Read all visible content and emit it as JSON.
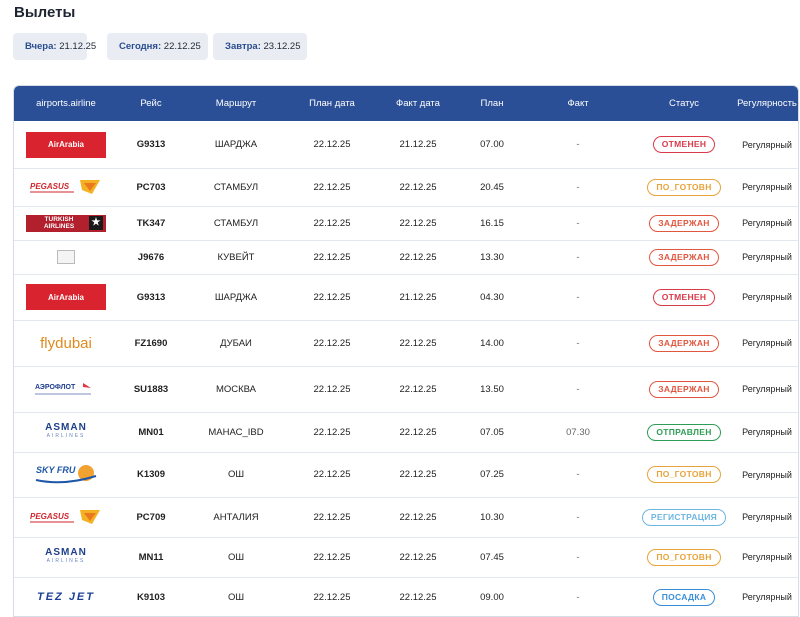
{
  "page": {
    "title": "Вылеты"
  },
  "day_tabs": [
    {
      "label": "Вчера:",
      "date": "21.12.25"
    },
    {
      "label": "Сегодня:",
      "date": "22.12.25"
    },
    {
      "label": "Завтра:",
      "date": "23.12.25"
    }
  ],
  "table": {
    "columns": [
      "airports.airline",
      "Рейс",
      "Маршрут",
      "План дата",
      "Факт дата",
      "План",
      "Факт",
      "Статус",
      "Регулярность"
    ],
    "rows": [
      {
        "logo": "airarabia",
        "logo_text": "AirArabia",
        "flight": "G9313",
        "route": "ШАРДЖА",
        "plan_date": "22.12.25",
        "fact_date": "21.12.25",
        "plan": "07.00",
        "fact": "-",
        "status": "ОТМЕНЕН",
        "status_color": "#d93a4a",
        "regularity": "Регулярный"
      },
      {
        "logo": "pegasus",
        "logo_text": "PEGASUS",
        "flight": "PC703",
        "route": "Стамбул",
        "plan_date": "22.12.25",
        "fact_date": "22.12.25",
        "plan": "20.45",
        "fact": "-",
        "status": "ПО_ГОТОВН",
        "status_color": "#e8a43c",
        "regularity": "Регулярный"
      },
      {
        "logo": "turkish",
        "logo_text": "TURKISH AIRLINES",
        "flight": "TK347",
        "route": "СТАМБУЛ",
        "plan_date": "22.12.25",
        "fact_date": "22.12.25",
        "plan": "16.15",
        "fact": "-",
        "status": "ЗАДЕРЖАН",
        "status_color": "#e0563f",
        "regularity": "Регулярный"
      },
      {
        "logo": "broken",
        "logo_text": "",
        "flight": "J9676",
        "route": "КУВЕЙТ",
        "plan_date": "22.12.25",
        "fact_date": "22.12.25",
        "plan": "13.30",
        "fact": "-",
        "status": "ЗАДЕРЖАН",
        "status_color": "#e0563f",
        "regularity": "Регулярный"
      },
      {
        "logo": "airarabia",
        "logo_text": "AirArabia",
        "flight": "G9313",
        "route": "ШАРДЖА",
        "plan_date": "22.12.25",
        "fact_date": "21.12.25",
        "plan": "04.30",
        "fact": "-",
        "status": "ОТМЕНЕН",
        "status_color": "#d93a4a",
        "regularity": "Регулярный"
      },
      {
        "logo": "flydubai",
        "logo_text": "flydubai",
        "flight": "FZ1690",
        "route": "ДУБАИ",
        "plan_date": "22.12.25",
        "fact_date": "22.12.25",
        "plan": "14.00",
        "fact": "-",
        "status": "ЗАДЕРЖАН",
        "status_color": "#e0563f",
        "regularity": "Регулярный"
      },
      {
        "logo": "aeroflot",
        "logo_text": "АЭРОФЛОТ",
        "flight": "SU1883",
        "route": "МОСКВА",
        "plan_date": "22.12.25",
        "fact_date": "22.12.25",
        "plan": "13.50",
        "fact": "-",
        "status": "ЗАДЕРЖАН",
        "status_color": "#e0563f",
        "regularity": "Регулярный"
      },
      {
        "logo": "asman",
        "logo_text": "ASMAN",
        "logo_sub": "AIRLINES",
        "flight": "MN01",
        "route": "МАНАС_IBD",
        "plan_date": "22.12.25",
        "fact_date": "22.12.25",
        "plan": "07.05",
        "fact": "07.30",
        "status": "ОТПРАВЛЕН",
        "status_color": "#2e9e57",
        "regularity": "Регулярный"
      },
      {
        "logo": "skyfru",
        "logo_text": "SKY FRU",
        "flight": "K1309",
        "route": "ОШ",
        "plan_date": "22.12.25",
        "fact_date": "22.12.25",
        "plan": "07.25",
        "fact": "-",
        "status": "ПО_ГОТОВН",
        "status_color": "#e8a43c",
        "regularity": "Регулярный"
      },
      {
        "logo": "pegasus",
        "logo_text": "PEGASUS",
        "flight": "PC709",
        "route": "АНТАЛИЯ",
        "plan_date": "22.12.25",
        "fact_date": "22.12.25",
        "plan": "10.30",
        "fact": "-",
        "status": "РЕГИСТРАЦИЯ",
        "status_color": "#6fb6e0",
        "regularity": "Регулярный"
      },
      {
        "logo": "asman",
        "logo_text": "ASMAN",
        "logo_sub": "AIRLINES",
        "flight": "MN11",
        "route": "ОШ",
        "plan_date": "22.12.25",
        "fact_date": "22.12.25",
        "plan": "07.45",
        "fact": "-",
        "status": "ПО_ГОТОВН",
        "status_color": "#e8a43c",
        "regularity": "Регулярный"
      },
      {
        "logo": "tezjet",
        "logo_text": "TEZ JET",
        "flight": "K9103",
        "route": "ОШ",
        "plan_date": "22.12.25",
        "fact_date": "22.12.25",
        "plan": "09.00",
        "fact": "-",
        "status": "ПОСАДКА",
        "status_color": "#3b8fd8",
        "regularity": "Регулярный"
      }
    ]
  }
}
